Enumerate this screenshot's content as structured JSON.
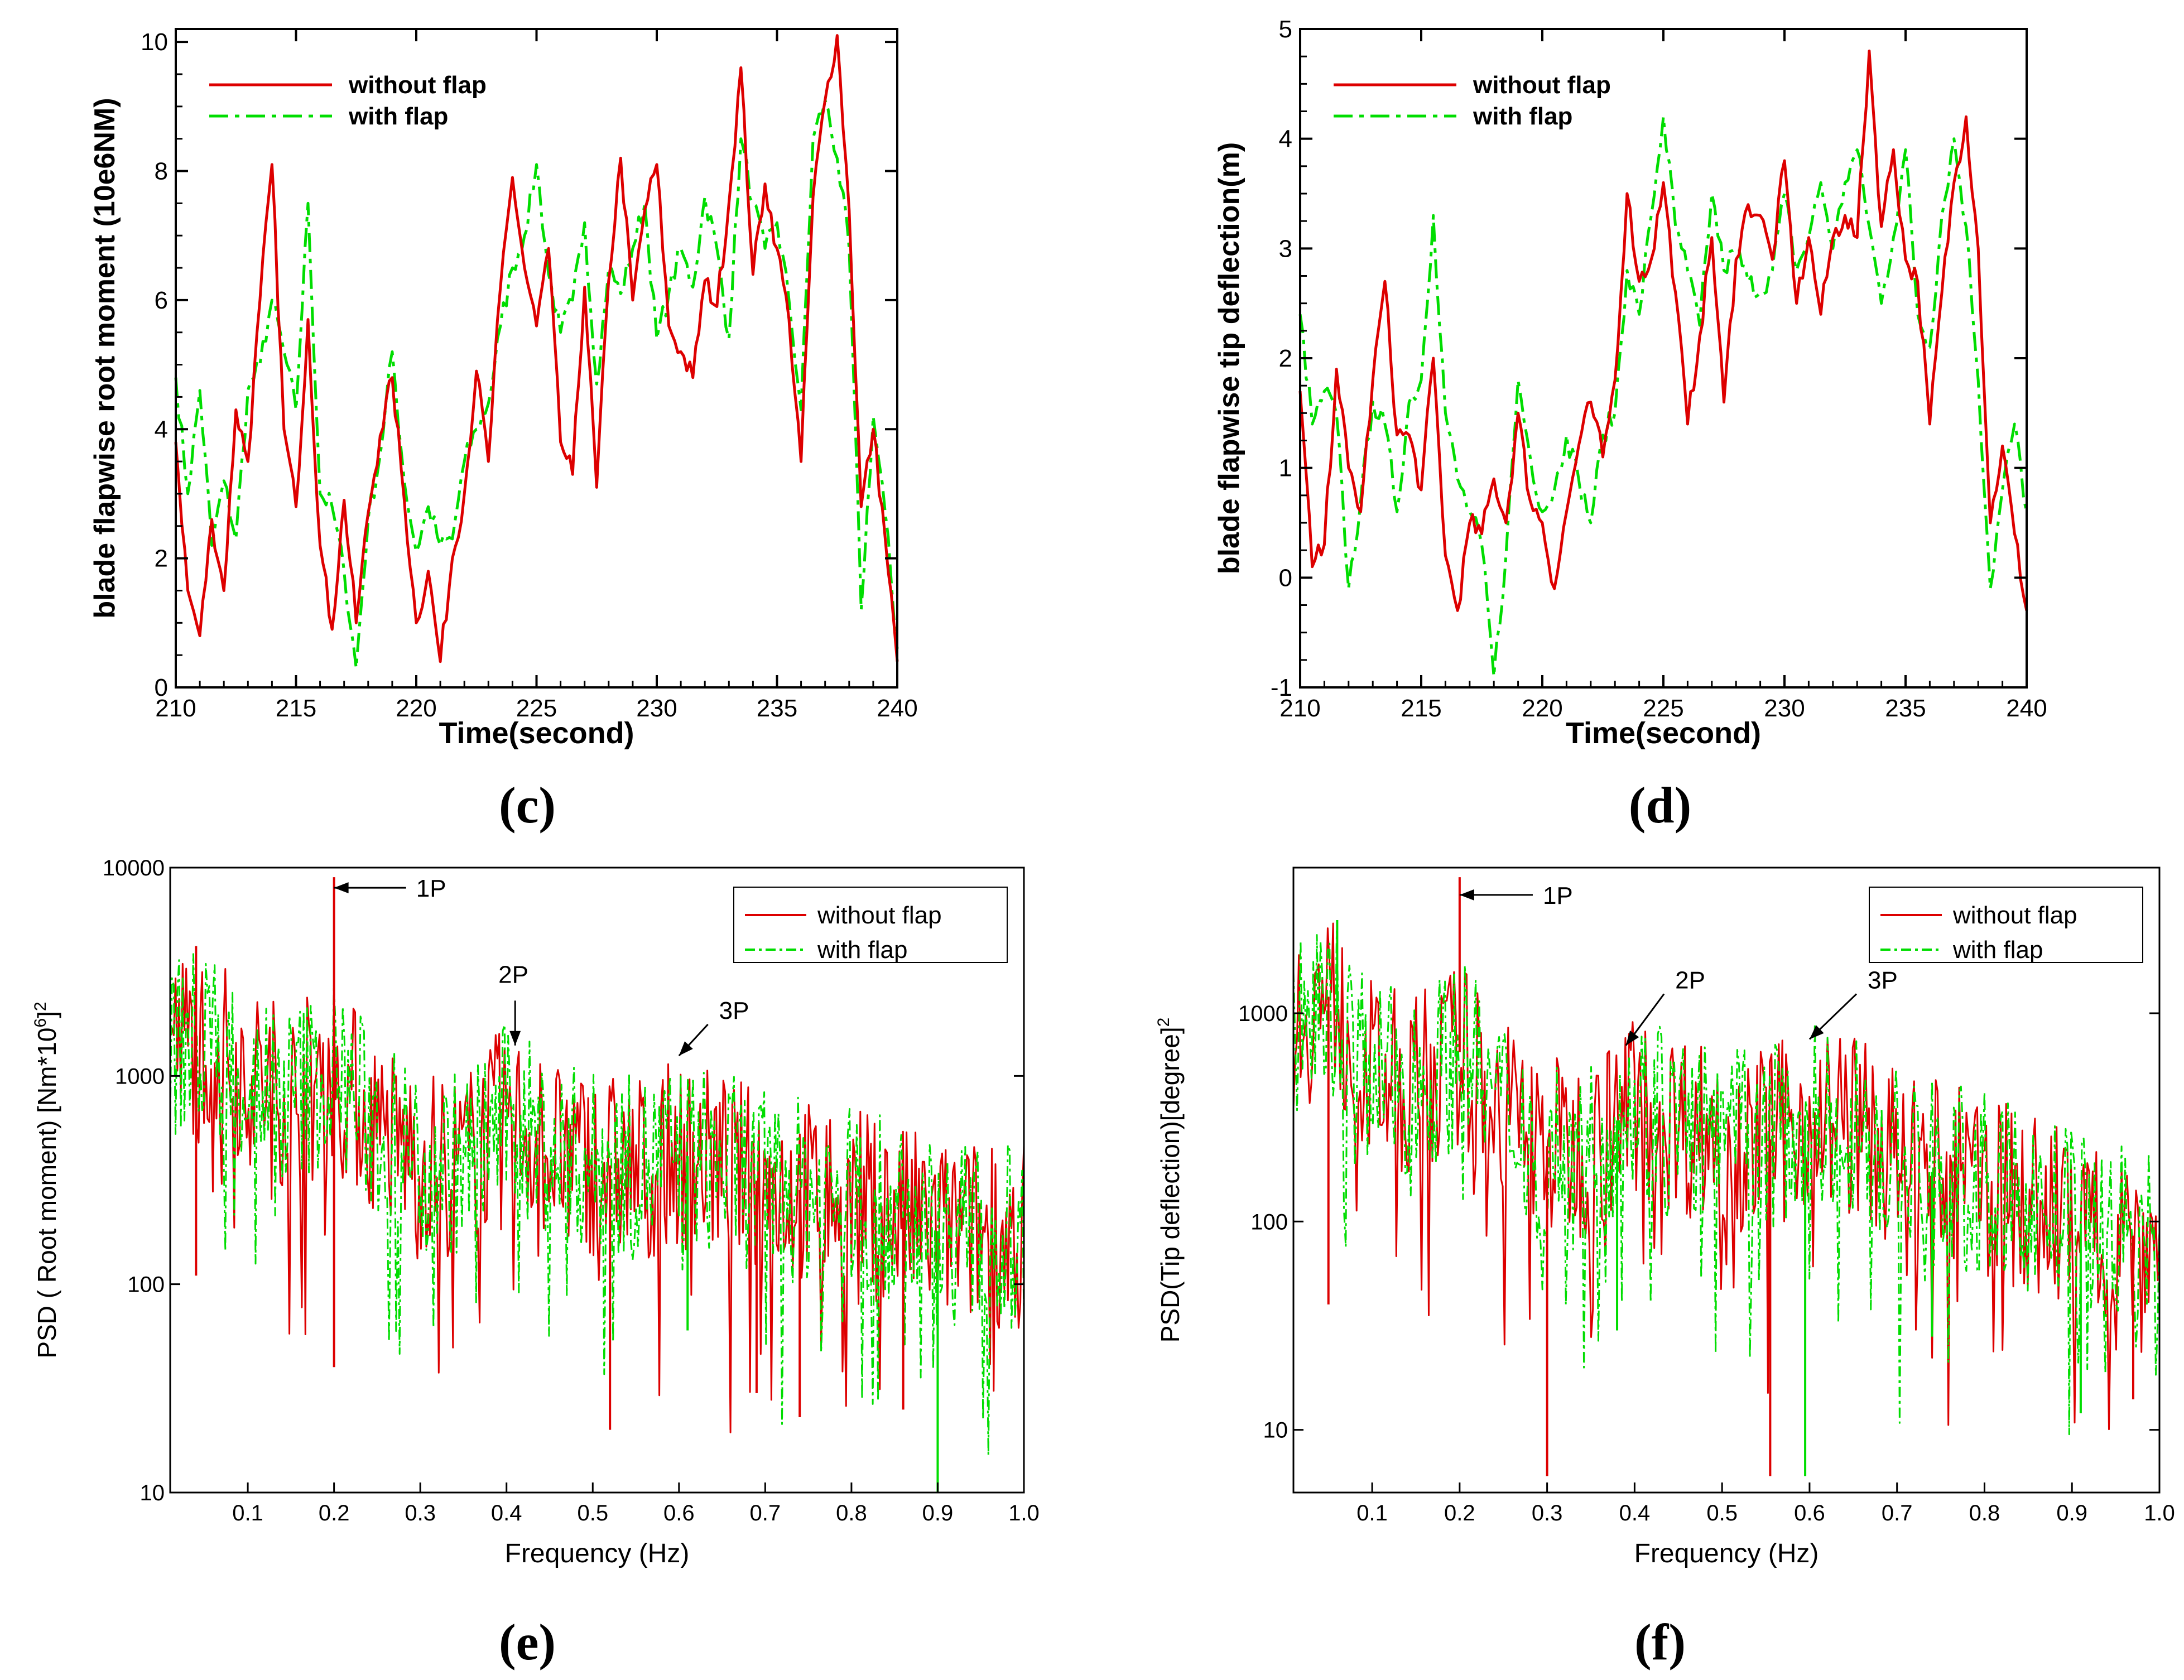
{
  "colors": {
    "without": "#dd0000",
    "with": "#00dd00",
    "axis": "#000000",
    "bg": "#ffffff"
  },
  "series_names": {
    "without": "without flap",
    "with": "with flap"
  },
  "panel_labels": {
    "c": "(c)",
    "d": "(d)",
    "e": "(e)",
    "f": "(f)"
  },
  "chart_data": [
    {
      "id": "c",
      "type": "line",
      "scale": "linear",
      "style": "bold",
      "xlabel": "Time(second)",
      "ylabel": "blade flapwise  root moment (10e6NM)",
      "xlim": [
        210,
        240
      ],
      "ylim": [
        0,
        10.2
      ],
      "xticks": [
        210,
        215,
        220,
        225,
        230,
        235,
        240
      ],
      "yticks": [
        0,
        2,
        4,
        6,
        8,
        10
      ],
      "series": [
        {
          "name": "without flap",
          "x": [
            210,
            210.5,
            211,
            211.5,
            212,
            212.5,
            213,
            213.5,
            214,
            214.5,
            215,
            215.5,
            216,
            216.5,
            217,
            217.5,
            218,
            218.5,
            219,
            219.5,
            220,
            220.5,
            221,
            221.5,
            222,
            222.5,
            223,
            223.5,
            224,
            224.5,
            225,
            225.5,
            226,
            226.5,
            227,
            227.5,
            228,
            228.5,
            229,
            229.5,
            230,
            230.5,
            231,
            231.5,
            232,
            232.5,
            233,
            233.5,
            234,
            234.5,
            235,
            235.5,
            236,
            236.5,
            237,
            237.5,
            238,
            238.5,
            239,
            239.5,
            240
          ],
          "values": [
            3.8,
            1.5,
            0.8,
            2.6,
            1.5,
            4.3,
            3.5,
            6.0,
            8.1,
            4.0,
            2.8,
            5.7,
            2.2,
            0.9,
            2.9,
            1.0,
            2.7,
            3.9,
            4.8,
            2.9,
            1.0,
            1.8,
            0.4,
            2.0,
            3.0,
            4.9,
            3.5,
            6.2,
            7.9,
            6.5,
            5.6,
            6.8,
            3.8,
            3.3,
            6.2,
            3.1,
            6.3,
            8.2,
            6.0,
            7.4,
            8.1,
            5.6,
            5.2,
            4.8,
            6.3,
            5.9,
            7.5,
            9.6,
            6.4,
            7.8,
            6.8,
            5.7,
            3.5,
            7.6,
            9.1,
            10.1,
            7.4,
            2.8,
            4.0,
            2.3,
            0.4
          ]
        },
        {
          "name": "with flap",
          "x": [
            210,
            210.5,
            211,
            211.5,
            212,
            212.5,
            213,
            213.5,
            214,
            214.5,
            215,
            215.5,
            216,
            216.5,
            217,
            217.5,
            218,
            218.5,
            219,
            219.5,
            220,
            220.5,
            221,
            221.5,
            222,
            222.5,
            223,
            223.5,
            224,
            224.5,
            225,
            225.5,
            226,
            226.5,
            227,
            227.5,
            228,
            228.5,
            229,
            229.5,
            230,
            230.5,
            231,
            231.5,
            232,
            232.5,
            233,
            233.5,
            234,
            234.5,
            235,
            235.5,
            236,
            236.5,
            237,
            237.5,
            238,
            238.5,
            239,
            239.5,
            240
          ],
          "values": [
            4.8,
            3.0,
            4.6,
            2.2,
            3.2,
            2.3,
            4.6,
            5.0,
            6.0,
            5.2,
            4.3,
            7.5,
            3.0,
            2.8,
            1.8,
            0.3,
            2.6,
            3.6,
            5.2,
            3.2,
            2.1,
            2.8,
            2.2,
            2.3,
            3.5,
            4.0,
            4.4,
            5.6,
            6.5,
            7.0,
            8.1,
            6.4,
            5.5,
            6.0,
            7.2,
            4.7,
            6.5,
            6.1,
            6.8,
            7.5,
            5.4,
            6.1,
            6.8,
            6.2,
            7.6,
            6.8,
            5.4,
            8.5,
            7.5,
            6.8,
            7.2,
            6.0,
            4.3,
            8.5,
            9.1,
            8.2,
            6.8,
            1.2,
            4.2,
            2.7,
            0.6
          ]
        }
      ]
    },
    {
      "id": "d",
      "type": "line",
      "scale": "linear",
      "style": "bold",
      "xlabel": "Time(second)",
      "ylabel": "blade flapwise tip deflection(m)",
      "xlim": [
        210,
        240
      ],
      "ylim": [
        -1,
        5
      ],
      "xticks": [
        210,
        215,
        220,
        225,
        230,
        235,
        240
      ],
      "yticks": [
        -1,
        0,
        1,
        2,
        3,
        4,
        5
      ],
      "series": [
        {
          "name": "without flap",
          "x": [
            210,
            210.5,
            211,
            211.5,
            212,
            212.5,
            213,
            213.5,
            214,
            214.5,
            215,
            215.5,
            216,
            216.5,
            217,
            217.5,
            218,
            218.5,
            219,
            219.5,
            220,
            220.5,
            221,
            221.5,
            222,
            222.5,
            223,
            223.5,
            224,
            224.5,
            225,
            225.5,
            226,
            226.5,
            227,
            227.5,
            228,
            228.5,
            229,
            229.5,
            230,
            230.5,
            231,
            231.5,
            232,
            232.5,
            233,
            233.5,
            234,
            234.5,
            235,
            235.5,
            236,
            236.5,
            237,
            237.5,
            238,
            238.5,
            239,
            239.5,
            240
          ],
          "values": [
            1.7,
            0.1,
            0.3,
            1.9,
            1.0,
            0.6,
            1.8,
            2.7,
            1.3,
            1.3,
            0.8,
            2.0,
            0.2,
            -0.3,
            0.5,
            0.4,
            0.9,
            0.5,
            1.5,
            0.7,
            0.5,
            -0.1,
            0.6,
            1.2,
            1.6,
            1.1,
            1.8,
            3.5,
            2.7,
            2.9,
            3.6,
            2.6,
            1.4,
            2.2,
            3.1,
            1.6,
            2.9,
            3.4,
            3.3,
            2.9,
            3.8,
            2.5,
            3.1,
            2.4,
            3.1,
            3.3,
            3.1,
            4.8,
            3.2,
            3.9,
            2.9,
            2.7,
            1.4,
            2.6,
            3.6,
            4.2,
            3.0,
            0.5,
            1.2,
            0.4,
            -0.3
          ]
        },
        {
          "name": "with flap",
          "x": [
            210,
            210.5,
            211,
            211.5,
            212,
            212.5,
            213,
            213.5,
            214,
            214.5,
            215,
            215.5,
            216,
            216.5,
            217,
            217.5,
            218,
            218.5,
            219,
            219.5,
            220,
            220.5,
            221,
            221.5,
            222,
            222.5,
            223,
            223.5,
            224,
            224.5,
            225,
            225.5,
            226,
            226.5,
            227,
            227.5,
            228,
            228.5,
            229,
            229.5,
            230,
            230.5,
            231,
            231.5,
            232,
            232.5,
            233,
            233.5,
            234,
            234.5,
            235,
            235.5,
            236,
            236.5,
            237,
            237.5,
            238,
            238.5,
            239,
            239.5,
            240
          ],
          "values": [
            2.4,
            1.4,
            1.7,
            1.5,
            -0.1,
            0.7,
            1.6,
            1.4,
            0.6,
            1.6,
            1.8,
            3.3,
            1.5,
            0.9,
            0.6,
            0.3,
            -0.9,
            0.2,
            1.8,
            1.1,
            0.6,
            0.8,
            1.3,
            0.9,
            0.5,
            1.3,
            1.5,
            2.8,
            2.4,
            3.3,
            4.2,
            3.2,
            2.8,
            2.3,
            3.5,
            2.8,
            3.0,
            2.7,
            2.6,
            2.8,
            3.5,
            2.8,
            3.1,
            3.6,
            3.0,
            3.6,
            3.9,
            3.2,
            2.5,
            3.1,
            3.9,
            2.4,
            2.1,
            3.3,
            4.0,
            3.2,
            1.8,
            -0.1,
            0.8,
            1.4,
            0.6
          ]
        }
      ]
    },
    {
      "id": "e",
      "type": "line",
      "scale": "log",
      "style": "normal",
      "xlabel": "Frequency (Hz)",
      "ylabel": "PSD ( Root moment) [Nm*10",
      "ylabel_sup": "6",
      "ylabel_end": "]",
      "ylabel_sup2": "2",
      "xlim": [
        0.01,
        1.0
      ],
      "ylim": [
        10,
        10000
      ],
      "xticks": [
        0.1,
        0.2,
        0.3,
        0.4,
        0.5,
        0.6,
        0.7,
        0.8,
        0.9,
        1.0
      ],
      "xtick_labels": [
        "0.1",
        "0.2",
        "0.3",
        "0.4",
        "0.5",
        "0.6",
        "0.7",
        "0.8",
        "0.9",
        "1.0"
      ],
      "yticks": [
        10,
        100,
        1000,
        10000
      ],
      "ytick_labels": [
        "10",
        "100",
        "1000",
        "10000"
      ],
      "envelope": [
        [
          0.01,
          1400
        ],
        [
          0.05,
          1500
        ],
        [
          0.1,
          1000
        ],
        [
          0.15,
          800
        ],
        [
          0.2,
          1100
        ],
        [
          0.25,
          550
        ],
        [
          0.3,
          400
        ],
        [
          0.35,
          380
        ],
        [
          0.4,
          650
        ],
        [
          0.45,
          450
        ],
        [
          0.5,
          380
        ],
        [
          0.55,
          360
        ],
        [
          0.6,
          420
        ],
        [
          0.65,
          380
        ],
        [
          0.7,
          300
        ],
        [
          0.8,
          260
        ],
        [
          0.9,
          180
        ],
        [
          1.0,
          170
        ]
      ],
      "spikes_up": [
        {
          "f": 0.2,
          "v": 9000,
          "series": "without flap"
        },
        {
          "f": 0.04,
          "v": 4200,
          "series": "without flap"
        }
      ],
      "spikes_down": [
        {
          "f": 0.04,
          "v": 110,
          "series": "without flap"
        },
        {
          "f": 0.2,
          "v": 40,
          "series": "without flap"
        },
        {
          "f": 0.52,
          "v": 20,
          "series": "without flap"
        },
        {
          "f": 0.74,
          "v": 23,
          "series": "without flap"
        },
        {
          "f": 0.86,
          "v": 25,
          "series": "without flap"
        },
        {
          "f": 0.9,
          "v": 10,
          "series": "with flap"
        },
        {
          "f": 0.69,
          "v": 30,
          "series": "without flap"
        },
        {
          "f": 0.61,
          "v": 60,
          "series": "with flap"
        }
      ],
      "annotations": [
        {
          "text": "1P",
          "f": 0.2,
          "v": 8000,
          "tx": 0.29,
          "tv": 8000,
          "dir": "left"
        },
        {
          "text": "2P",
          "f": 0.41,
          "v": 1400,
          "tx": 0.41,
          "tv": 2600,
          "dir": "down"
        },
        {
          "text": "3P",
          "f": 0.6,
          "v": 1250,
          "tx": 0.64,
          "tv": 2000,
          "dir": "diag"
        }
      ]
    },
    {
      "id": "f",
      "type": "line",
      "scale": "log",
      "style": "normal",
      "xlabel": "Frequency (Hz)",
      "ylabel": "PSD(Tip deflection)[degree]",
      "ylabel_sup": "",
      "ylabel_end": "",
      "ylabel_sup2": "2",
      "xlim": [
        0.01,
        1.0
      ],
      "ylim": [
        5,
        5000
      ],
      "xticks": [
        0.1,
        0.2,
        0.3,
        0.4,
        0.5,
        0.6,
        0.7,
        0.8,
        0.9,
        1.0
      ],
      "xtick_labels": [
        "0.1",
        "0.2",
        "0.3",
        "0.4",
        "0.5",
        "0.6",
        "0.7",
        "0.8",
        "0.9",
        "1.0"
      ],
      "yticks": [
        10,
        100,
        1000
      ],
      "ytick_labels": [
        "10",
        "100",
        "1000"
      ],
      "envelope": [
        [
          0.01,
          900
        ],
        [
          0.05,
          1200
        ],
        [
          0.1,
          500
        ],
        [
          0.15,
          450
        ],
        [
          0.2,
          650
        ],
        [
          0.25,
          350
        ],
        [
          0.3,
          230
        ],
        [
          0.35,
          220
        ],
        [
          0.4,
          380
        ],
        [
          0.45,
          300
        ],
        [
          0.5,
          260
        ],
        [
          0.55,
          240
        ],
        [
          0.6,
          330
        ],
        [
          0.65,
          300
        ],
        [
          0.7,
          190
        ],
        [
          0.8,
          150
        ],
        [
          0.9,
          100
        ],
        [
          1.0,
          80
        ]
      ],
      "spikes_up": [
        {
          "f": 0.2,
          "v": 4500,
          "series": "without flap"
        },
        {
          "f": 0.06,
          "v": 2800,
          "series": "with flap"
        }
      ],
      "spikes_down": [
        {
          "f": 0.05,
          "v": 40,
          "series": "without flap"
        },
        {
          "f": 0.3,
          "v": 6,
          "series": "without flap"
        },
        {
          "f": 0.555,
          "v": 6,
          "series": "without flap"
        },
        {
          "f": 0.595,
          "v": 6,
          "series": "with flap"
        },
        {
          "f": 0.91,
          "v": 12,
          "series": "with flap"
        },
        {
          "f": 0.97,
          "v": 14,
          "series": "without flap"
        },
        {
          "f": 0.38,
          "v": 30,
          "series": "with flap"
        },
        {
          "f": 0.74,
          "v": 28,
          "series": "with flap"
        }
      ],
      "annotations": [
        {
          "text": "1P",
          "f": 0.2,
          "v": 3700,
          "tx": 0.29,
          "tv": 3700,
          "dir": "left"
        },
        {
          "text": "2P",
          "f": 0.39,
          "v": 700,
          "tx": 0.44,
          "tv": 1400,
          "dir": "diag"
        },
        {
          "text": "3P",
          "f": 0.6,
          "v": 750,
          "tx": 0.66,
          "tv": 1400,
          "dir": "diag"
        }
      ]
    }
  ]
}
